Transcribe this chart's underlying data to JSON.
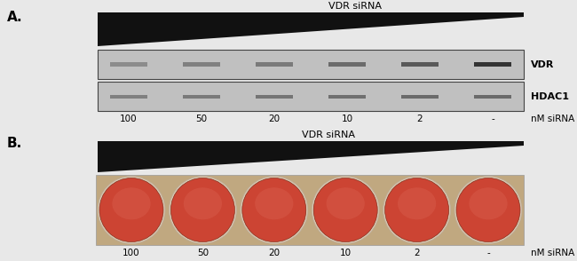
{
  "title_a": "A.",
  "title_b": "B.",
  "vdr_sirna_label": "VDR siRNA",
  "nm_sirna_label": "nM siRNA",
  "concentrations": [
    "100",
    "50",
    "20",
    "10",
    "2",
    "-"
  ],
  "vdr_label": "VDR",
  "hdac1_label": "HDAC1",
  "figure_bg": "#e8e8e8",
  "panel_bg": "#f0f0f0",
  "wb_bg": "#c0c0c0",
  "wb_border": "#444444",
  "triangle_color": "#111111",
  "band_color_vdr": [
    0.55,
    0.5,
    0.48,
    0.42,
    0.35,
    0.2
  ],
  "band_color_hdac1": [
    0.5,
    0.48,
    0.46,
    0.44,
    0.42,
    0.42
  ],
  "well_rim_color": "#d8c8b0",
  "well_main_color": "#cc4433",
  "well_dark_color": "#992222",
  "well_light_color": "#dd6655",
  "plate_bg": "#c0a880",
  "label_fontsize": 8,
  "tick_fontsize": 7.5
}
